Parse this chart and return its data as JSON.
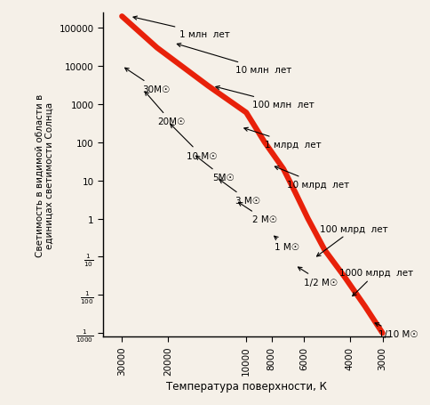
{
  "title": "",
  "xlabel": "Температура поверхности, К",
  "ylabel": "Светимость в видимой области в\nединицах светимости Солнца",
  "bg_color": "#f5f0e8",
  "line_color": "#e8210a",
  "line_width": 4.5,
  "xlim_log": [
    3.45,
    4.55
  ],
  "ylim_log": [
    -3.0,
    5.3
  ],
  "xtick_vals": [
    30000,
    20000,
    10000,
    8000,
    6000,
    4000,
    3000
  ],
  "ytick_vals": [
    100000,
    10000,
    1000,
    100,
    10,
    1,
    0.1,
    0.01,
    0.001
  ],
  "ytick_labels": [
    "100000",
    "10000",
    "1000",
    "100",
    "10",
    "1",
    "1/10",
    "1/100",
    "1/1000"
  ],
  "main_sequence_T": [
    30000,
    22000,
    14000,
    10000,
    8500,
    7200,
    6500,
    5800,
    5000,
    4200,
    3500,
    3000
  ],
  "main_sequence_L": [
    200000,
    30000,
    3000,
    600,
    100,
    20,
    5,
    1,
    0.15,
    0.03,
    0.005,
    0.001
  ],
  "mass_labels": [
    {
      "text": "30M☉",
      "T": 28000,
      "L": 2500
    },
    {
      "text": "20M☉",
      "T": 24000,
      "L": 400
    },
    {
      "text": "10 M☉",
      "T": 18000,
      "L": 50
    },
    {
      "text": "5M☉",
      "T": 14000,
      "L": 12
    },
    {
      "text": "3 M☉",
      "T": 11500,
      "L": 2.5
    },
    {
      "text": "2 M☉",
      "T": 10000,
      "L": 0.9
    },
    {
      "text": "1 M☉",
      "T": 8000,
      "L": 0.18
    },
    {
      "text": "1/2 M☉",
      "T": 6200,
      "L": 0.02
    },
    {
      "text": "1/10 M☉",
      "T": 3000,
      "L": 0.0009
    }
  ],
  "time_labels": [
    {
      "text": "1 млн  лет",
      "T": 18000,
      "L": 60000,
      "arrow_T": 28000,
      "arrow_L": 200000
    },
    {
      "text": "10 млн  лет",
      "T": 12000,
      "L": 8000,
      "arrow_T": 20000,
      "arrow_L": 30000
    },
    {
      "text": "100 млн  лет",
      "T": 10000,
      "L": 900,
      "arrow_T": 14000,
      "arrow_L": 2500
    },
    {
      "text": "1 млрд  лет",
      "T": 9000,
      "L": 80,
      "arrow_T": 11000,
      "arrow_L": 200
    },
    {
      "text": "10 млрд  лет",
      "T": 7500,
      "L": 7,
      "arrow_T": 8500,
      "arrow_L": 20
    },
    {
      "text": "100 млрд  лет",
      "T": 5000,
      "L": 0.6,
      "arrow_T": 5500,
      "arrow_L": 0.08
    },
    {
      "text": "1000 млрд  лет",
      "T": 4200,
      "L": 0.04,
      "arrow_T": 4000,
      "arrow_L": 0.008
    }
  ]
}
